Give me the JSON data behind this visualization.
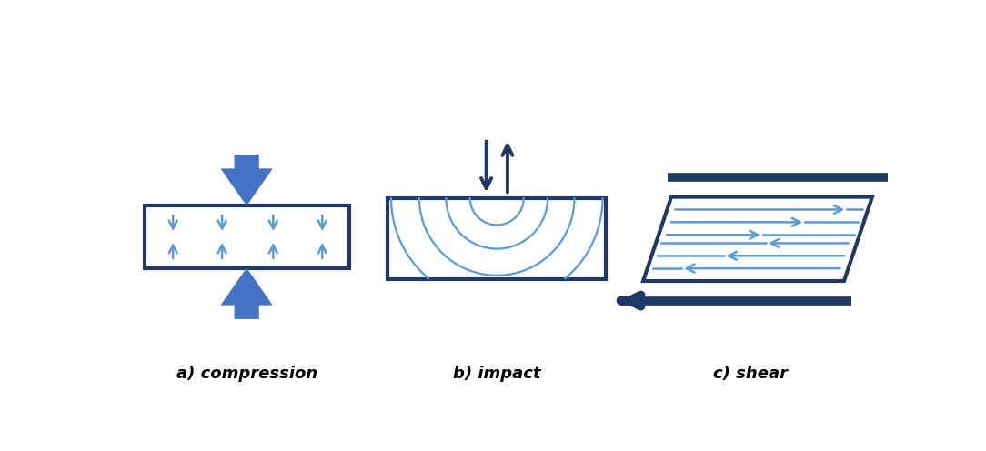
{
  "bg_color": "#ffffff",
  "dark_blue": "#1f3864",
  "mid_blue": "#4472c4",
  "light_blue": "#5b9bd5",
  "label_a": "a) compression",
  "label_b": "b) impact",
  "label_c": "c) shear",
  "label_fontsize": 13,
  "fig_w": 10.84,
  "fig_h": 4.96
}
